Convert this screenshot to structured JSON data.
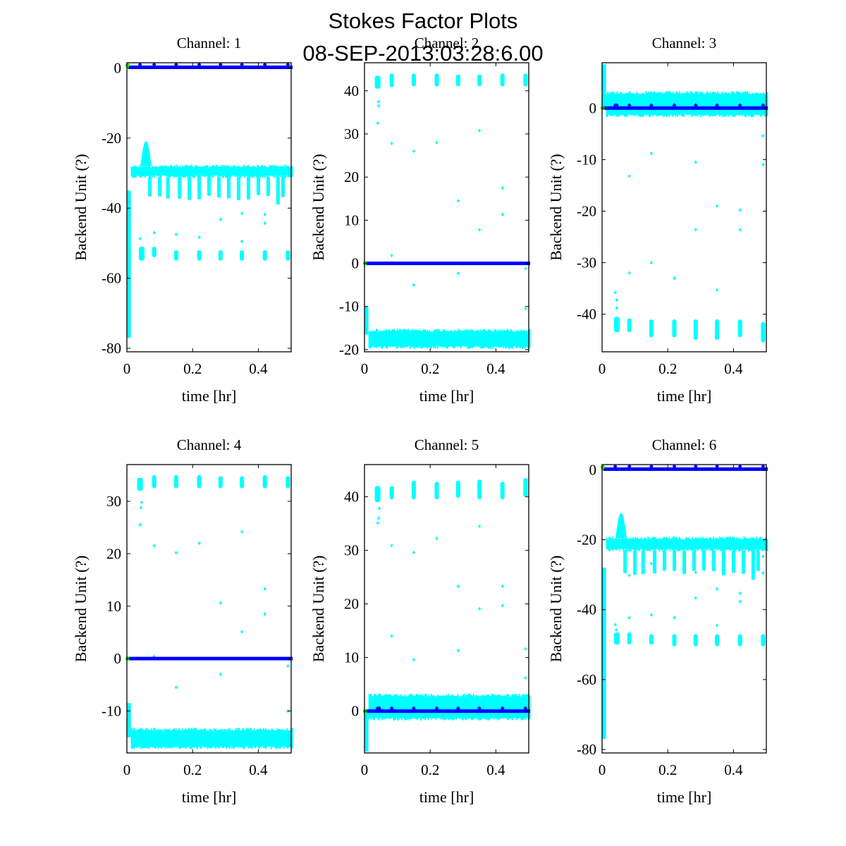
{
  "figure": {
    "title_line1": "Stokes Factor Plots",
    "title_line2": "08-SEP-2013:03:28:6.00"
  },
  "colors": {
    "cyan": "#00ffff",
    "blue": "#0000ff",
    "green": "#00ee00",
    "axes": "#000000"
  },
  "chart_data": [
    {
      "type": "scatter",
      "title": "Channel: 1",
      "xlabel": "time [hr]",
      "ylabel": "Backend Unit (?)",
      "xlim": [
        0,
        0.5
      ],
      "ylim": [
        -81,
        1.5
      ],
      "xticks": [
        "0",
        "0.2",
        "0.4"
      ],
      "xtick_values": [
        0,
        0.2,
        0.4
      ],
      "yticks": [
        "-80",
        "-60",
        "-40",
        "-20",
        "0"
      ],
      "ytick_values": [
        -80,
        -60,
        -40,
        -20,
        0
      ],
      "series": [
        {
          "name": "cyan",
          "kind": "band",
          "start_min": -77,
          "start_max": -35,
          "level_min": -31,
          "level_max": -28,
          "bump_x": 0.058,
          "bump_y": -21,
          "dips_to": -37,
          "clusters": [
            {
              "x": 0.045,
              "min": -55,
              "max": -51
            },
            {
              "x": 0.083,
              "min": -54,
              "max": -51
            },
            {
              "x": 0.15,
              "min": -55,
              "max": -52
            },
            {
              "x": 0.22,
              "min": -55,
              "max": -52
            },
            {
              "x": 0.285,
              "min": -55,
              "max": -52
            },
            {
              "x": 0.35,
              "min": -55,
              "max": -52
            },
            {
              "x": 0.42,
              "min": -55,
              "max": -52
            },
            {
              "x": 0.49,
              "min": -55,
              "max": -52
            }
          ],
          "outliers": [
            [
              0.04,
              -48.7
            ],
            [
              0.083,
              -47
            ],
            [
              0.15,
              -47.5
            ],
            [
              0.22,
              -48.3
            ],
            [
              0.285,
              -43.2
            ],
            [
              0.35,
              -41.5
            ],
            [
              0.35,
              -49.5
            ],
            [
              0.42,
              -41.8
            ],
            [
              0.42,
              -44.3
            ]
          ]
        },
        {
          "name": "blue",
          "kind": "line",
          "y": 0.2,
          "markers": [
            0.04,
            0.083,
            0.15,
            0.22,
            0.285,
            0.35,
            0.42,
            0.49
          ]
        },
        {
          "name": "green",
          "kind": "point",
          "x": 0.002,
          "y": 0.8
        }
      ]
    },
    {
      "type": "scatter",
      "title": "Channel: 2",
      "xlabel": "time [hr]",
      "ylabel": "Backend Unit (?)",
      "xlim": [
        0,
        0.5
      ],
      "ylim": [
        -20.5,
        46.5
      ],
      "xticks": [
        "0",
        "0.2",
        "0.4"
      ],
      "xtick_values": [
        0,
        0.2,
        0.4
      ],
      "yticks": [
        "-20",
        "-10",
        "0",
        "10",
        "20",
        "30",
        "40"
      ],
      "ytick_values": [
        -20,
        -10,
        0,
        10,
        20,
        30,
        40
      ],
      "series": [
        {
          "name": "cyan",
          "kind": "noise",
          "start_min": -16.5,
          "start_max": -10,
          "level_min": -19.5,
          "level_max": -15.5,
          "clusters": [
            {
              "x": 0.04,
              "min": 40.5,
              "max": 43.5
            },
            {
              "x": 0.083,
              "min": 40.8,
              "max": 44
            },
            {
              "x": 0.15,
              "min": 41,
              "max": 44
            },
            {
              "x": 0.22,
              "min": 41,
              "max": 44
            },
            {
              "x": 0.285,
              "min": 41,
              "max": 43.8
            },
            {
              "x": 0.35,
              "min": 41,
              "max": 43.8
            },
            {
              "x": 0.42,
              "min": 41,
              "max": 44
            },
            {
              "x": 0.49,
              "min": 41,
              "max": 44
            }
          ],
          "outliers": [
            [
              0.04,
              32.5
            ],
            [
              0.043,
              36.5
            ],
            [
              0.043,
              37.5
            ],
            [
              0.083,
              27.8
            ],
            [
              0.083,
              1.8
            ],
            [
              0.15,
              26
            ],
            [
              0.15,
              -5
            ],
            [
              0.22,
              28
            ],
            [
              0.285,
              14.5
            ],
            [
              0.285,
              -2.3
            ],
            [
              0.35,
              30.8
            ],
            [
              0.35,
              7.8
            ],
            [
              0.42,
              17.5
            ],
            [
              0.42,
              11.3
            ],
            [
              0.49,
              -10.5
            ],
            [
              0.49,
              -1.2
            ]
          ]
        },
        {
          "name": "blue",
          "kind": "line",
          "y": 0,
          "markers": []
        },
        {
          "name": "green",
          "kind": "point",
          "x": 0.002,
          "y": 0
        }
      ]
    },
    {
      "type": "scatter",
      "title": "Channel: 3",
      "xlabel": "time [hr]",
      "ylabel": "Backend Unit (?)",
      "xlim": [
        0,
        0.5
      ],
      "ylim": [
        -47.3,
        8.8
      ],
      "xticks": [
        "0",
        "0.2",
        "0.4"
      ],
      "xtick_values": [
        0,
        0.2,
        0.4
      ],
      "yticks": [
        "-40",
        "-30",
        "-20",
        "-10",
        "0"
      ],
      "ytick_values": [
        -40,
        -30,
        -20,
        -10,
        0
      ],
      "series": [
        {
          "name": "cyan",
          "kind": "noise",
          "start_min": 0,
          "start_max": 8.5,
          "level_min": -1.5,
          "level_max": 3,
          "clusters": [
            {
              "x": 0.045,
              "min": -43.5,
              "max": -40.5
            },
            {
              "x": 0.083,
              "min": -43.5,
              "max": -40.8
            },
            {
              "x": 0.15,
              "min": -44.5,
              "max": -41
            },
            {
              "x": 0.22,
              "min": -44.5,
              "max": -41
            },
            {
              "x": 0.285,
              "min": -45,
              "max": -41
            },
            {
              "x": 0.35,
              "min": -45,
              "max": -41
            },
            {
              "x": 0.42,
              "min": -44.5,
              "max": -41
            },
            {
              "x": 0.49,
              "min": -45.5,
              "max": -41.5
            }
          ],
          "outliers": [
            [
              0.04,
              -35.8
            ],
            [
              0.045,
              -37.3
            ],
            [
              0.045,
              -38.8
            ],
            [
              0.083,
              -13.2
            ],
            [
              0.083,
              -32
            ],
            [
              0.15,
              -8.8
            ],
            [
              0.15,
              -30
            ],
            [
              0.22,
              -33
            ],
            [
              0.285,
              -10.5
            ],
            [
              0.285,
              -23.6
            ],
            [
              0.35,
              -19
            ],
            [
              0.35,
              -35.3
            ],
            [
              0.42,
              -19.8
            ],
            [
              0.42,
              -23.6
            ],
            [
              0.49,
              -5.4
            ],
            [
              0.49,
              -11
            ]
          ]
        },
        {
          "name": "blue",
          "kind": "line",
          "y": 0,
          "markers": [
            0.04,
            0.045,
            0.083,
            0.15,
            0.22,
            0.285,
            0.35,
            0.42,
            0.49
          ]
        },
        {
          "name": "green",
          "kind": "point",
          "x": 0.002,
          "y": 0
        }
      ]
    },
    {
      "type": "scatter",
      "title": "Channel: 4",
      "xlabel": "time [hr]",
      "ylabel": "Backend Unit (?)",
      "xlim": [
        0,
        0.5
      ],
      "ylim": [
        -18,
        37
      ],
      "xticks": [
        "0",
        "0.2",
        "0.4"
      ],
      "xtick_values": [
        0,
        0.2,
        0.4
      ],
      "yticks": [
        "-10",
        "0",
        "10",
        "20",
        "30"
      ],
      "ytick_values": [
        -10,
        0,
        10,
        20,
        30
      ],
      "series": [
        {
          "name": "cyan",
          "kind": "noise",
          "start_min": -15,
          "start_max": -8.5,
          "level_min": -17,
          "level_max": -13.5,
          "clusters": [
            {
              "x": 0.04,
              "min": 32,
              "max": 34.5
            },
            {
              "x": 0.083,
              "min": 32.5,
              "max": 35
            },
            {
              "x": 0.15,
              "min": 32.5,
              "max": 35
            },
            {
              "x": 0.22,
              "min": 32.5,
              "max": 35
            },
            {
              "x": 0.285,
              "min": 32.5,
              "max": 34.8
            },
            {
              "x": 0.35,
              "min": 32.5,
              "max": 34.8
            },
            {
              "x": 0.42,
              "min": 32.5,
              "max": 35
            },
            {
              "x": 0.49,
              "min": 32.5,
              "max": 34.8
            }
          ],
          "outliers": [
            [
              0.04,
              25.5
            ],
            [
              0.043,
              28.8
            ],
            [
              0.045,
              29.8
            ],
            [
              0.083,
              21.5
            ],
            [
              0.083,
              0.4
            ],
            [
              0.15,
              20.2
            ],
            [
              0.15,
              -5.5
            ],
            [
              0.22,
              22
            ],
            [
              0.285,
              10.6
            ],
            [
              0.285,
              -3
            ],
            [
              0.35,
              24.2
            ],
            [
              0.35,
              5.1
            ],
            [
              0.42,
              13.3
            ],
            [
              0.42,
              8.5
            ],
            [
              0.49,
              -1.4
            ],
            [
              0.49,
              -10
            ]
          ]
        },
        {
          "name": "blue",
          "kind": "line",
          "y": 0,
          "markers": []
        },
        {
          "name": "green",
          "kind": "point",
          "x": 0.002,
          "y": 0
        }
      ]
    },
    {
      "type": "scatter",
      "title": "Channel: 5",
      "xlabel": "time [hr]",
      "ylabel": "Backend Unit (?)",
      "xlim": [
        0,
        0.5
      ],
      "ylim": [
        -7.8,
        46
      ],
      "xticks": [
        "0",
        "0.2",
        "0.4"
      ],
      "xtick_values": [
        0,
        0.2,
        0.4
      ],
      "yticks": [
        "0",
        "10",
        "20",
        "30",
        "40"
      ],
      "ytick_values": [
        0,
        10,
        20,
        30,
        40
      ],
      "series": [
        {
          "name": "cyan",
          "kind": "noise",
          "start_min": -7.5,
          "start_max": 0,
          "level_min": -1.5,
          "level_max": 3,
          "clusters": [
            {
              "x": 0.04,
              "min": 39,
              "max": 42
            },
            {
              "x": 0.083,
              "min": 39.5,
              "max": 42
            },
            {
              "x": 0.15,
              "min": 39.5,
              "max": 43
            },
            {
              "x": 0.22,
              "min": 39.5,
              "max": 42.8
            },
            {
              "x": 0.285,
              "min": 39.8,
              "max": 43
            },
            {
              "x": 0.35,
              "min": 39.5,
              "max": 43.2
            },
            {
              "x": 0.42,
              "min": 39.5,
              "max": 42.8
            },
            {
              "x": 0.49,
              "min": 40,
              "max": 43.5
            }
          ],
          "outliers": [
            [
              0.04,
              35.1
            ],
            [
              0.043,
              36
            ],
            [
              0.045,
              37.8
            ],
            [
              0.083,
              30.9
            ],
            [
              0.083,
              14
            ],
            [
              0.15,
              29.6
            ],
            [
              0.15,
              9.6
            ],
            [
              0.22,
              32.2
            ],
            [
              0.285,
              23.3
            ],
            [
              0.285,
              11.3
            ],
            [
              0.35,
              34.5
            ],
            [
              0.35,
              19.1
            ],
            [
              0.42,
              23.3
            ],
            [
              0.42,
              19.7
            ],
            [
              0.49,
              11.6
            ],
            [
              0.49,
              6.2
            ]
          ]
        },
        {
          "name": "blue",
          "kind": "line",
          "y": 0,
          "markers": [
            0.04,
            0.045,
            0.083,
            0.15,
            0.22,
            0.285,
            0.35,
            0.42,
            0.49
          ]
        },
        {
          "name": "green",
          "kind": "point",
          "x": 0.002,
          "y": 0
        }
      ]
    },
    {
      "type": "scatter",
      "title": "Channel: 6",
      "xlabel": "time [hr]",
      "ylabel": "Backend Unit (?)",
      "xlim": [
        0,
        0.5
      ],
      "ylim": [
        -81,
        1.5
      ],
      "xticks": [
        "0",
        "0.2",
        "0.4"
      ],
      "xtick_values": [
        0,
        0.2,
        0.4
      ],
      "yticks": [
        "-80",
        "-60",
        "-40",
        "-20",
        "0"
      ],
      "ytick_values": [
        -80,
        -60,
        -40,
        -20,
        0
      ],
      "series": [
        {
          "name": "cyan",
          "kind": "band",
          "start_min": -77,
          "start_max": -28,
          "level_min": -23,
          "level_max": -19.5,
          "bump_x": 0.058,
          "bump_y": -12.5,
          "dips_to": -29.5,
          "clusters": [
            {
              "x": 0.045,
              "min": -50,
              "max": -46.5
            },
            {
              "x": 0.083,
              "min": -50,
              "max": -46.5
            },
            {
              "x": 0.15,
              "min": -50,
              "max": -47
            },
            {
              "x": 0.22,
              "min": -50.5,
              "max": -47
            },
            {
              "x": 0.285,
              "min": -50.5,
              "max": -47
            },
            {
              "x": 0.35,
              "min": -50.5,
              "max": -47
            },
            {
              "x": 0.42,
              "min": -50.5,
              "max": -47
            },
            {
              "x": 0.49,
              "min": -50.5,
              "max": -47
            }
          ],
          "outliers": [
            [
              0.04,
              -44.3
            ],
            [
              0.043,
              -45.8
            ],
            [
              0.083,
              -30.2
            ],
            [
              0.083,
              -42.3
            ],
            [
              0.15,
              -26.8
            ],
            [
              0.15,
              -41.5
            ],
            [
              0.22,
              -42.3
            ],
            [
              0.285,
              -29.3
            ],
            [
              0.285,
              -36.7
            ],
            [
              0.35,
              -34.1
            ],
            [
              0.35,
              -44.5
            ],
            [
              0.42,
              -35.3
            ],
            [
              0.42,
              -37.7
            ],
            [
              0.49,
              -24.8
            ],
            [
              0.49,
              -29.5
            ]
          ]
        },
        {
          "name": "blue",
          "kind": "line",
          "y": 0.2,
          "markers": [
            0.04,
            0.083,
            0.15,
            0.22,
            0.285,
            0.35,
            0.42,
            0.49
          ]
        },
        {
          "name": "green",
          "kind": "point",
          "x": 0.002,
          "y": 0.8
        }
      ]
    }
  ]
}
